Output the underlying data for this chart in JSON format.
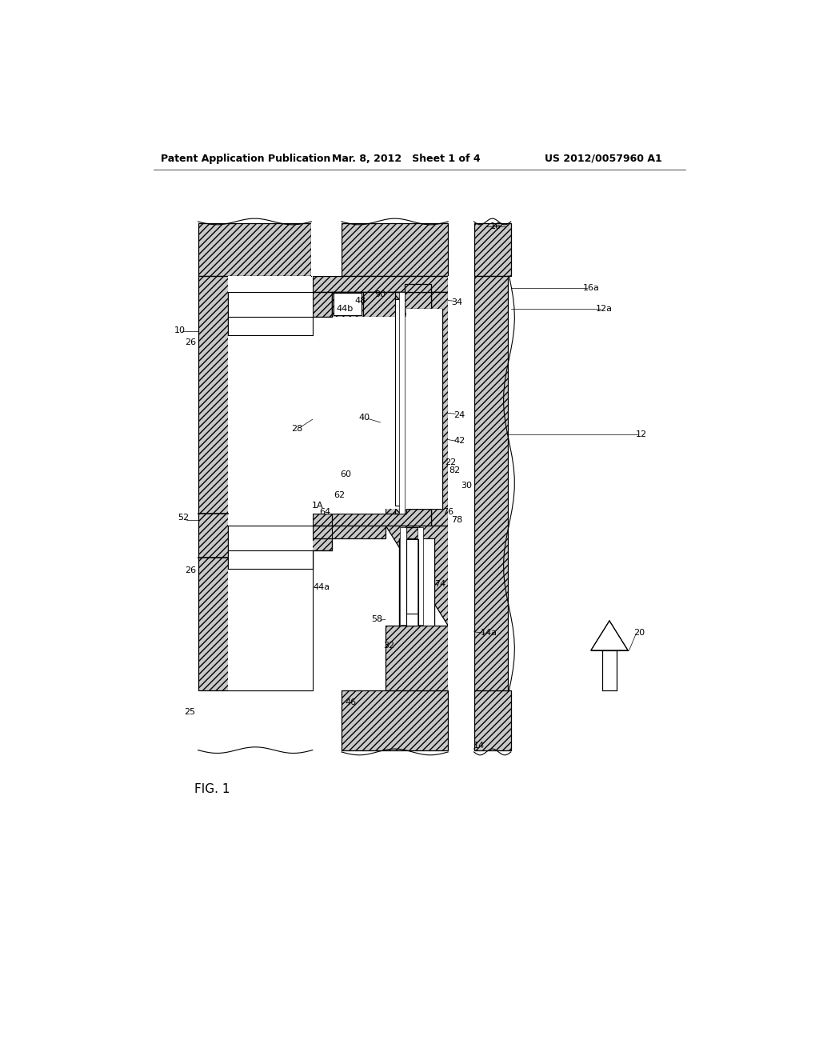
{
  "header_left": "Patent Application Publication",
  "header_center": "Mar. 8, 2012   Sheet 1 of 4",
  "header_right": "US 2012/0057960 A1",
  "fig_label": "FIG. 1",
  "background_color": "#ffffff"
}
